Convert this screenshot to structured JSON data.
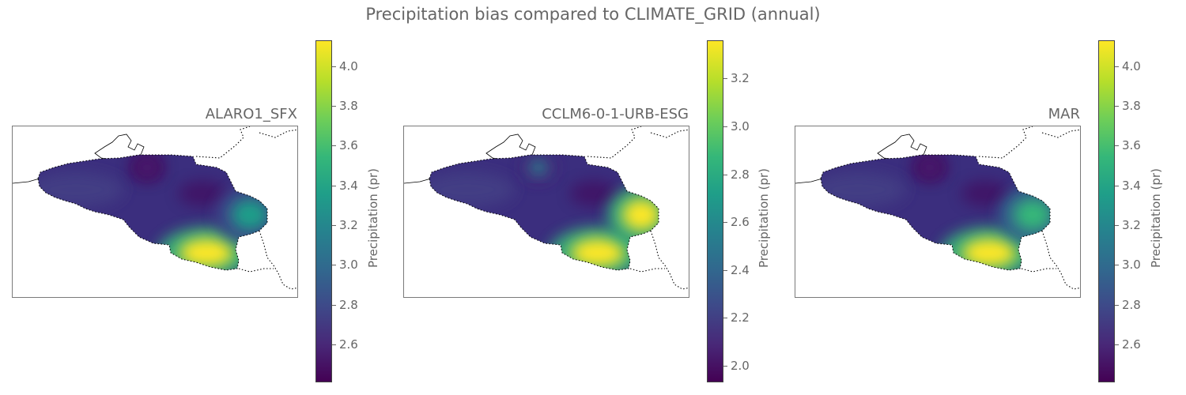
{
  "figure": {
    "title": "Precipitation bias compared to CLIMATE_GRID (annual)"
  },
  "panels": [
    {
      "title": "ALARO1_SFX",
      "colorbar": {
        "label": "Precipitation (pr)",
        "range": [
          2.41,
          4.13
        ],
        "ticks": [
          "2.6",
          "2.8",
          "3.0",
          "3.2",
          "3.4",
          "3.6",
          "3.8",
          "4.0"
        ]
      },
      "hotspots": [
        {
          "name": "south",
          "level": 1.0
        },
        {
          "name": "east",
          "level": 0.55
        },
        {
          "name": "coast",
          "level": 0.1
        }
      ]
    },
    {
      "title": "CCLM6-0-1-URB-ESG",
      "colorbar": {
        "label": "Precipitation (pr)",
        "range": [
          1.93,
          3.36
        ],
        "ticks": [
          "2.0",
          "2.2",
          "2.4",
          "2.6",
          "2.8",
          "3.0",
          "3.2"
        ]
      },
      "hotspots": [
        {
          "name": "south",
          "level": 0.95
        },
        {
          "name": "east",
          "level": 1.0
        },
        {
          "name": "coast",
          "level": 0.45
        }
      ]
    },
    {
      "title": "MAR",
      "colorbar": {
        "label": "Precipitation (pr)",
        "range": [
          2.41,
          4.13
        ],
        "ticks": [
          "2.6",
          "2.8",
          "3.0",
          "3.2",
          "3.4",
          "3.6",
          "3.8",
          "4.0"
        ]
      },
      "hotspots": [
        {
          "name": "south",
          "level": 1.0
        },
        {
          "name": "east",
          "level": 0.65
        },
        {
          "name": "coast",
          "level": 0.1
        }
      ]
    }
  ]
}
